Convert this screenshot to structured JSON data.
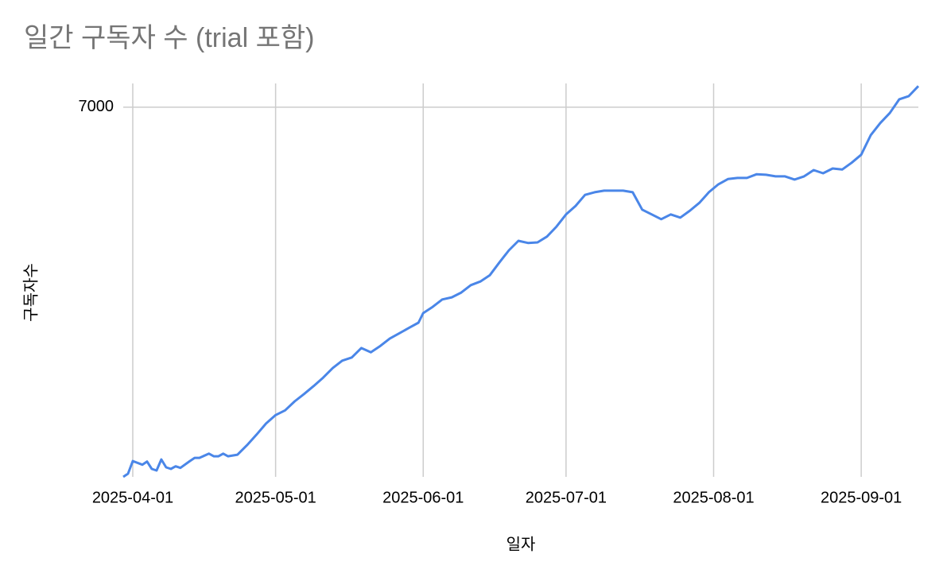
{
  "chart_data": {
    "type": "line",
    "title": "일간 구독자 수 (trial 포함)",
    "x_label": "일자",
    "y_label": "구독자수",
    "x": [
      "2025-03-30",
      "2025-03-31",
      "2025-04-01",
      "2025-04-03",
      "2025-04-04",
      "2025-04-05",
      "2025-04-06",
      "2025-04-07",
      "2025-04-08",
      "2025-04-09",
      "2025-04-10",
      "2025-04-11",
      "2025-04-13",
      "2025-04-14",
      "2025-04-15",
      "2025-04-17",
      "2025-04-18",
      "2025-04-19",
      "2025-04-20",
      "2025-04-21",
      "2025-04-23",
      "2025-04-25",
      "2025-04-27",
      "2025-04-29",
      "2025-05-01",
      "2025-05-03",
      "2025-05-05",
      "2025-05-07",
      "2025-05-09",
      "2025-05-11",
      "2025-05-13",
      "2025-05-15",
      "2025-05-17",
      "2025-05-19",
      "2025-05-21",
      "2025-05-23",
      "2025-05-25",
      "2025-05-27",
      "2025-05-29",
      "2025-05-31",
      "2025-06-01",
      "2025-06-03",
      "2025-06-05",
      "2025-06-07",
      "2025-06-09",
      "2025-06-11",
      "2025-06-13",
      "2025-06-15",
      "2025-06-17",
      "2025-06-19",
      "2025-06-21",
      "2025-06-23",
      "2025-06-25",
      "2025-06-27",
      "2025-06-29",
      "2025-07-01",
      "2025-07-03",
      "2025-07-05",
      "2025-07-07",
      "2025-07-09",
      "2025-07-11",
      "2025-07-13",
      "2025-07-15",
      "2025-07-17",
      "2025-07-19",
      "2025-07-21",
      "2025-07-23",
      "2025-07-25",
      "2025-07-27",
      "2025-07-29",
      "2025-07-31",
      "2025-08-02",
      "2025-08-04",
      "2025-08-06",
      "2025-08-08",
      "2025-08-10",
      "2025-08-12",
      "2025-08-14",
      "2025-08-16",
      "2025-08-18",
      "2025-08-20",
      "2025-08-22",
      "2025-08-24",
      "2025-08-26",
      "2025-08-28",
      "2025-08-30",
      "2025-09-01",
      "2025-09-03",
      "2025-09-05",
      "2025-09-07",
      "2025-09-09",
      "2025-09-11",
      "2025-09-13"
    ],
    "series": [
      {
        "name": "구독자수",
        "color": "#4a86e8",
        "values": [
          0,
          60,
          300,
          230,
          290,
          150,
          120,
          330,
          180,
          150,
          200,
          170,
          300,
          360,
          360,
          440,
          390,
          390,
          440,
          390,
          420,
          600,
          800,
          1010,
          1170,
          1260,
          1430,
          1570,
          1720,
          1880,
          2060,
          2200,
          2260,
          2440,
          2360,
          2480,
          2620,
          2720,
          2820,
          2920,
          3100,
          3220,
          3360,
          3400,
          3490,
          3630,
          3700,
          3820,
          4060,
          4290,
          4470,
          4430,
          4440,
          4550,
          4740,
          4970,
          5130,
          5340,
          5390,
          5420,
          5420,
          5420,
          5390,
          5060,
          4970,
          4880,
          4970,
          4910,
          5040,
          5190,
          5390,
          5540,
          5640,
          5660,
          5660,
          5730,
          5720,
          5690,
          5690,
          5630,
          5690,
          5810,
          5750,
          5840,
          5820,
          5950,
          6100,
          6470,
          6700,
          6890,
          7150,
          7210,
          7400
        ]
      }
    ],
    "xlim": [
      "2025-03-30",
      "2025-09-13"
    ],
    "xticks": [
      "2025-04-01",
      "2025-05-01",
      "2025-06-01",
      "2025-07-01",
      "2025-08-01",
      "2025-09-01"
    ],
    "ylim": [
      0,
      7450
    ],
    "yticks": [
      7000
    ],
    "grid": true
  }
}
